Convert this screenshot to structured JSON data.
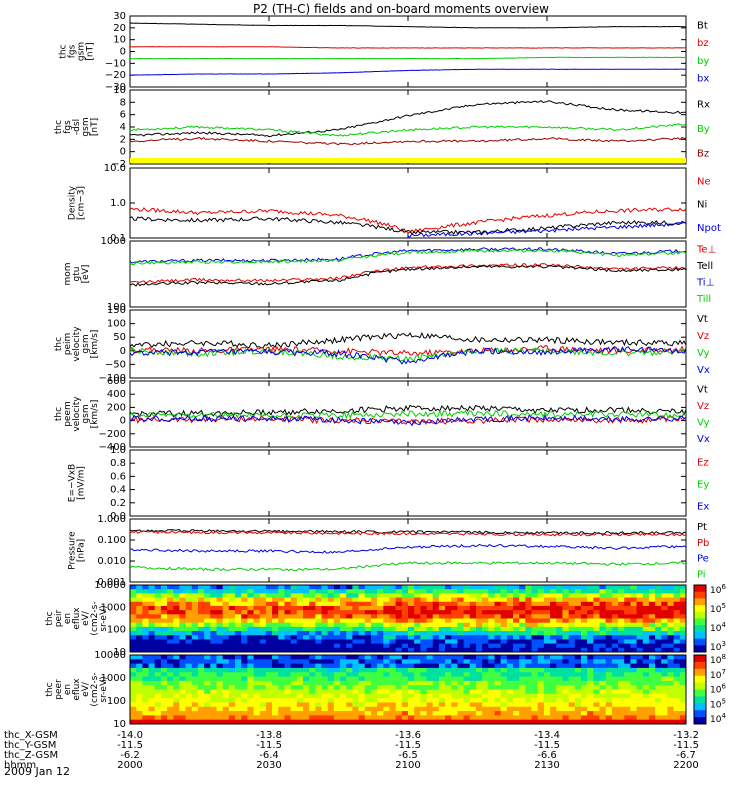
{
  "title": "P2 (TH-C) fields and on-board moments overview",
  "date_label": "2009 Jan 12",
  "footer": {
    "row_labels": [
      "thc_X-GSM",
      "thc_Y-GSM",
      "thc_Z-GSM",
      "hhmm"
    ],
    "ticks": [
      {
        "x": "-14.0",
        "y": "-11.5",
        "z": "-6.2",
        "t": "2000"
      },
      {
        "x": "-13.8",
        "y": "-11.5",
        "z": "-6.4",
        "t": "2030"
      },
      {
        "x": "-13.6",
        "y": "-11.5",
        "z": "-6.5",
        "t": "2100"
      },
      {
        "x": "-13.4",
        "y": "-11.5",
        "z": "-6.6",
        "t": "2130"
      },
      {
        "x": "-13.2",
        "y": "-11.5",
        "z": "-6.7",
        "t": "2200"
      }
    ]
  },
  "colors": {
    "black": "#000000",
    "red": "#e00000",
    "green": "#00d000",
    "blue": "#0000e0",
    "darkred": "#990000",
    "yellow": "#ffff00"
  },
  "chart_data": [
    {
      "type": "line",
      "id": "fgs",
      "ylabel": [
        "thc",
        "fgs",
        "gsm",
        "[nT]"
      ],
      "ylim": [
        -30,
        30
      ],
      "yticks": [
        "30",
        "20",
        "10",
        "0",
        "−10",
        "−20",
        "−30"
      ],
      "series": [
        {
          "name": "Bt",
          "color": "#000000",
          "values": [
            24,
            23,
            22,
            22,
            21,
            20,
            20,
            21,
            21
          ]
        },
        {
          "name": "bz",
          "color": "#e00000",
          "values": [
            4,
            4,
            4,
            3,
            3,
            3,
            3,
            3,
            3
          ]
        },
        {
          "name": "by",
          "color": "#00d000",
          "values": [
            -6,
            -6,
            -6,
            -6,
            -6,
            -6,
            -5,
            -5,
            -5
          ]
        },
        {
          "name": "bx",
          "color": "#0000e0",
          "values": [
            -20,
            -19,
            -19,
            -18,
            -16,
            -15,
            -15,
            -15,
            -15
          ]
        }
      ]
    },
    {
      "type": "line",
      "id": "fgs_dsl",
      "ylabel": [
        "thc",
        "fgs",
        "-dsl",
        "gsm",
        "[nT]"
      ],
      "ylim": [
        -3,
        10
      ],
      "yticks": [
        "10",
        "8",
        "6",
        "4",
        "2",
        "0",
        "−2"
      ],
      "series": [
        {
          "name": "Rx",
          "color": "#000000",
          "values": [
            2,
            2.5,
            2,
            3,
            5.5,
            7.5,
            8,
            6.5,
            6
          ]
        },
        {
          "name": "By",
          "color": "#00d000",
          "values": [
            3,
            3.5,
            3,
            2,
            3,
            3.5,
            3.5,
            3,
            4
          ]
        },
        {
          "name": "Bz",
          "color": "#990000",
          "values": [
            1,
            1.5,
            1,
            0.5,
            1,
            1,
            1.5,
            1,
            1.5
          ]
        }
      ]
    },
    {
      "type": "line",
      "id": "density",
      "ylabel": [
        "Density",
        "[cm−3]"
      ],
      "log": true,
      "ylim": [
        0.1,
        15
      ],
      "yticks": [
        "10.0",
        "1.0",
        "0.1"
      ],
      "series": [
        {
          "name": "Ne",
          "color": "#e00000",
          "values": [
            0.8,
            0.6,
            0.7,
            0.5,
            0.15,
            0.3,
            0.5,
            0.7,
            0.8
          ]
        },
        {
          "name": "Ni",
          "color": "#000000",
          "values": [
            0.4,
            0.35,
            0.4,
            0.3,
            0.15,
            0.15,
            0.2,
            0.3,
            0.3
          ]
        },
        {
          "name": "Npot",
          "color": "#0000e0",
          "values": [
            null,
            null,
            null,
            null,
            0.12,
            0.14,
            0.17,
            0.22,
            0.28
          ]
        }
      ]
    },
    {
      "type": "line",
      "id": "temp",
      "ylabel": [
        "mom",
        "gtu",
        "[eV]"
      ],
      "log": true,
      "ylim": [
        10,
        5000
      ],
      "yticks": [
        "1000",
        "100"
      ],
      "series": [
        {
          "name": "Te⊥",
          "color": "#e00000",
          "values": [
            100,
            130,
            120,
            150,
            400,
            500,
            520,
            350,
            400
          ]
        },
        {
          "name": "Tell",
          "color": "#000000",
          "values": [
            80,
            100,
            90,
            120,
            350,
            450,
            450,
            300,
            350
          ]
        },
        {
          "name": "Ti⊥",
          "color": "#0000e0",
          "values": [
            700,
            800,
            800,
            900,
            2000,
            2300,
            2300,
            1500,
            2000
          ]
        },
        {
          "name": "Till",
          "color": "#00d000",
          "values": [
            600,
            700,
            700,
            800,
            1700,
            2000,
            2000,
            1300,
            1700
          ]
        }
      ]
    },
    {
      "type": "line",
      "id": "peim",
      "ylabel": [
        "thc",
        "peim",
        "velocity",
        "gsm",
        "[km/s]"
      ],
      "ylim": [
        -100,
        150
      ],
      "yticks": [
        "150",
        "100",
        "50",
        "0",
        "−50",
        "−100"
      ],
      "series": [
        {
          "name": "Vt",
          "color": "#000000",
          "values": [
            20,
            30,
            20,
            40,
            60,
            40,
            40,
            30,
            30
          ]
        },
        {
          "name": "Vz",
          "color": "#e00000",
          "values": [
            5,
            0,
            5,
            0,
            -10,
            0,
            10,
            0,
            5
          ]
        },
        {
          "name": "Vy",
          "color": "#00d000",
          "values": [
            0,
            -10,
            0,
            -20,
            -30,
            0,
            0,
            -10,
            0
          ]
        },
        {
          "name": "Vx",
          "color": "#0000e0",
          "values": [
            -10,
            -5,
            -5,
            -10,
            -40,
            0,
            -5,
            5,
            0
          ]
        }
      ]
    },
    {
      "type": "line",
      "id": "peem",
      "ylabel": [
        "thc",
        "peem",
        "velocity",
        "gsm",
        "[km/s]"
      ],
      "ylim": [
        -500,
        600
      ],
      "yticks": [
        "600",
        "400",
        "200",
        "0",
        "−200",
        "−400"
      ],
      "series": [
        {
          "name": "Vt",
          "color": "#000000",
          "values": [
            50,
            60,
            80,
            100,
            150,
            150,
            100,
            120,
            80
          ]
        },
        {
          "name": "Vz",
          "color": "#e00000",
          "values": [
            -50,
            -40,
            -30,
            -60,
            -80,
            -60,
            -40,
            -60,
            -40
          ]
        },
        {
          "name": "Vy",
          "color": "#00d000",
          "values": [
            20,
            40,
            10,
            30,
            50,
            60,
            40,
            50,
            30
          ]
        },
        {
          "name": "Vx",
          "color": "#0000e0",
          "values": [
            -20,
            -30,
            -20,
            -50,
            -100,
            -30,
            -20,
            -40,
            -20
          ]
        }
      ]
    },
    {
      "type": "line",
      "id": "efield",
      "ylabel": [
        "E=−VxB",
        "[mV/m]"
      ],
      "ylim": [
        0,
        1
      ],
      "yticks": [
        "1.0",
        "0.8",
        "0.6",
        "0.4",
        "0.2",
        "0.0"
      ],
      "series": [
        {
          "name": "Ez",
          "color": "#e00000",
          "values": []
        },
        {
          "name": "Ey",
          "color": "#00d000",
          "values": []
        },
        {
          "name": "Ex",
          "color": "#0000e0",
          "values": []
        }
      ]
    },
    {
      "type": "line",
      "id": "pressure",
      "ylabel": [
        "Pressure",
        "[nPa]"
      ],
      "log": true,
      "ylim": [
        0.001,
        1
      ],
      "yticks": [
        "1.000",
        "0.100",
        "0.010",
        "0.001"
      ],
      "series": [
        {
          "name": "Pt",
          "color": "#000000",
          "values": [
            0.28,
            0.27,
            0.26,
            0.25,
            0.24,
            0.23,
            0.22,
            0.22,
            0.22
          ]
        },
        {
          "name": "Pb",
          "color": "#e00000",
          "values": [
            0.24,
            0.23,
            0.22,
            0.21,
            0.2,
            0.19,
            0.18,
            0.18,
            0.18
          ]
        },
        {
          "name": "Pe",
          "color": "#0000e0",
          "values": [
            0.035,
            0.03,
            0.03,
            0.025,
            0.045,
            0.055,
            0.05,
            0.04,
            0.05
          ]
        },
        {
          "name": "Pi",
          "color": "#00d000",
          "values": [
            0.005,
            0.004,
            0.004,
            0.004,
            0.008,
            0.008,
            0.008,
            0.007,
            0.008
          ]
        }
      ]
    },
    {
      "type": "heatmap",
      "id": "peir",
      "ylabel": [
        "thc",
        "peir",
        "en",
        "eflux",
        "eV/",
        "(cm2-s-",
        "sr-eV)"
      ],
      "log": true,
      "yticks": [
        "10000",
        "1000",
        "100",
        "10"
      ],
      "colorbar_ticks": [
        "6",
        "5",
        "4",
        "3"
      ]
    },
    {
      "type": "heatmap",
      "id": "peer",
      "ylabel": [
        "thc",
        "peer",
        "en",
        "eflux",
        "eV/",
        "(cm2-s-",
        "sr-eV)"
      ],
      "log": true,
      "yticks": [
        "10000",
        "1000",
        "100",
        "10"
      ],
      "colorbar_ticks": [
        "8",
        "7",
        "6",
        "5",
        "4"
      ]
    }
  ]
}
